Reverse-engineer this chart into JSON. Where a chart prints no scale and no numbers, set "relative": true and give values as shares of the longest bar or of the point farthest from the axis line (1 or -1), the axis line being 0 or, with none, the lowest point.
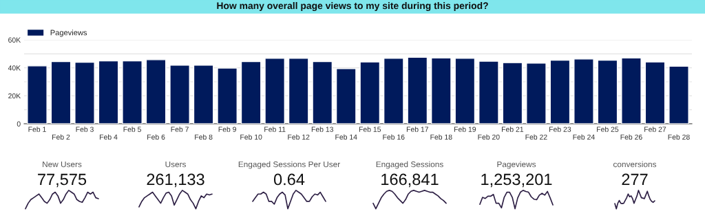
{
  "chart_data": [
    {
      "type": "bar",
      "title": "How many overall page views to my site during this period?",
      "categories": [
        "Feb 1",
        "Feb 2",
        "Feb 3",
        "Feb 4",
        "Feb 5",
        "Feb 6",
        "Feb 7",
        "Feb 8",
        "Feb 9",
        "Feb 10",
        "Feb 11",
        "Feb 12",
        "Feb 13",
        "Feb 14",
        "Feb 15",
        "Feb 16",
        "Feb 17",
        "Feb 18",
        "Feb 19",
        "Feb 20",
        "Feb 21",
        "Feb 22",
        "Feb 23",
        "Feb 24",
        "Feb 25",
        "Feb 26",
        "Feb 27",
        "Feb 28"
      ],
      "series": [
        {
          "name": "Pageviews",
          "color": "#001a5c",
          "values": [
            41400,
            44500,
            44000,
            45000,
            45000,
            45800,
            41900,
            41900,
            39800,
            44500,
            46800,
            46800,
            44500,
            39400,
            44200,
            46800,
            47600,
            47100,
            46800,
            44700,
            43700,
            43400,
            45500,
            46300,
            45500,
            47100,
            44200,
            41100
          ]
        }
      ],
      "ylim": [
        0,
        60000
      ],
      "yticks": [
        {
          "value": 0,
          "label": "0"
        },
        {
          "value": 10000,
          "label": null
        },
        {
          "value": 20000,
          "label": "20K"
        },
        {
          "value": 30000,
          "label": null
        },
        {
          "value": 40000,
          "label": "40K"
        },
        {
          "value": 50000,
          "label": null
        },
        {
          "value": 60000,
          "label": "60K"
        }
      ],
      "grid": "y",
      "legend": "top left"
    },
    {
      "type": "line",
      "title": "New Users",
      "annotations": [
        "77,575"
      ],
      "relative": true,
      "categories": [
        null,
        null,
        null,
        null,
        null,
        null,
        null,
        null,
        null,
        null,
        null,
        null,
        null,
        null,
        null,
        null,
        null,
        null,
        null,
        null,
        null,
        null,
        null,
        null,
        null,
        null,
        null,
        null
      ],
      "color": "#2d1f44",
      "values": [
        0.0,
        0.3,
        0.5,
        0.6,
        0.7,
        0.8,
        0.6,
        0.4,
        0.3,
        0.5,
        0.8,
        0.9,
        0.7,
        0.3,
        0.5,
        0.8,
        1.0,
        0.9,
        0.8,
        0.5,
        0.4,
        0.35,
        0.6,
        0.9,
        0.8,
        0.9,
        0.6,
        0.55
      ]
    },
    {
      "type": "line",
      "title": "Users",
      "annotations": [
        "261,133"
      ],
      "relative": true,
      "categories": [
        null,
        null,
        null,
        null,
        null,
        null,
        null,
        null,
        null,
        null,
        null,
        null,
        null,
        null,
        null,
        null,
        null,
        null,
        null,
        null,
        null,
        null,
        null,
        null,
        null,
        null,
        null,
        null
      ],
      "color": "#2d1f44",
      "values": [
        0.1,
        0.4,
        0.6,
        0.7,
        0.8,
        0.9,
        0.7,
        0.5,
        0.3,
        0.6,
        0.85,
        0.9,
        0.7,
        0.2,
        0.5,
        0.8,
        1.0,
        0.9,
        0.8,
        0.5,
        0.3,
        0.0,
        0.4,
        0.7,
        0.6,
        0.8,
        0.75,
        0.8
      ]
    },
    {
      "type": "line",
      "title": "Engaged Sessions Per User",
      "annotations": [
        "0.64"
      ],
      "relative": true,
      "categories": [
        null,
        null,
        null,
        null,
        null,
        null,
        null,
        null,
        null,
        null,
        null,
        null,
        null,
        null,
        null,
        null,
        null,
        null,
        null,
        null,
        null,
        null,
        null,
        null,
        null,
        null,
        null,
        null
      ],
      "color": "#2d1f44",
      "values": [
        0.4,
        0.6,
        0.8,
        0.8,
        0.9,
        0.8,
        0.4,
        0.4,
        0.25,
        0.6,
        0.8,
        0.9,
        0.75,
        0.0,
        0.4,
        0.8,
        1.0,
        0.9,
        0.8,
        0.6,
        0.4,
        0.4,
        0.65,
        0.8,
        0.75,
        0.9,
        0.65,
        0.4
      ]
    },
    {
      "type": "line",
      "title": "Engaged Sessions",
      "annotations": [
        "166,841"
      ],
      "relative": true,
      "categories": [
        null,
        null,
        null,
        null,
        null,
        null,
        null,
        null,
        null,
        null,
        null,
        null,
        null,
        null,
        null,
        null,
        null,
        null,
        null,
        null,
        null,
        null,
        null,
        null,
        null,
        null,
        null,
        null
      ],
      "color": "#2d1f44",
      "values": [
        0.3,
        0.0,
        0.3,
        0.6,
        0.8,
        0.95,
        1.0,
        0.95,
        0.8,
        0.6,
        0.45,
        0.3,
        0.5,
        0.8,
        0.95,
        1.0,
        0.95,
        0.9,
        0.95,
        1.0,
        0.95,
        0.9,
        0.9,
        0.8,
        0.7,
        0.55,
        0.45,
        0.3
      ]
    },
    {
      "type": "line",
      "title": "Pageviews",
      "annotations": [
        "1,253,201"
      ],
      "relative": true,
      "categories": [
        null,
        null,
        null,
        null,
        null,
        null,
        null,
        null,
        null,
        null,
        null,
        null,
        null,
        null,
        null,
        null,
        null,
        null,
        null,
        null,
        null,
        null,
        null,
        null,
        null,
        null,
        null,
        null
      ],
      "color": "#2d1f44",
      "values": [
        0.24,
        0.62,
        0.56,
        0.68,
        0.68,
        0.78,
        0.3,
        0.3,
        0.05,
        0.62,
        0.9,
        0.9,
        0.62,
        0.0,
        0.59,
        0.9,
        1.0,
        0.94,
        0.9,
        0.65,
        0.52,
        0.49,
        0.74,
        0.84,
        0.74,
        0.94,
        0.59,
        0.21
      ]
    },
    {
      "type": "line",
      "title": "conversions",
      "annotations": [
        "277"
      ],
      "relative": true,
      "categories": [
        null,
        null,
        null,
        null,
        null,
        null,
        null,
        null,
        null,
        null,
        null,
        null,
        null,
        null,
        null,
        null,
        null,
        null,
        null,
        null,
        null,
        null,
        null,
        null,
        null,
        null,
        null,
        null
      ],
      "color": "#2d1f44",
      "values": [
        0.28,
        0.0,
        0.3,
        0.45,
        0.3,
        0.28,
        0.3,
        0.45,
        0.6,
        0.8,
        0.65,
        0.7,
        0.55,
        0.3,
        0.5,
        0.7,
        1.0,
        0.8,
        0.6,
        0.58,
        0.55,
        0.75,
        0.95,
        0.7,
        0.5,
        0.4,
        0.35,
        0.43
      ]
    }
  ]
}
